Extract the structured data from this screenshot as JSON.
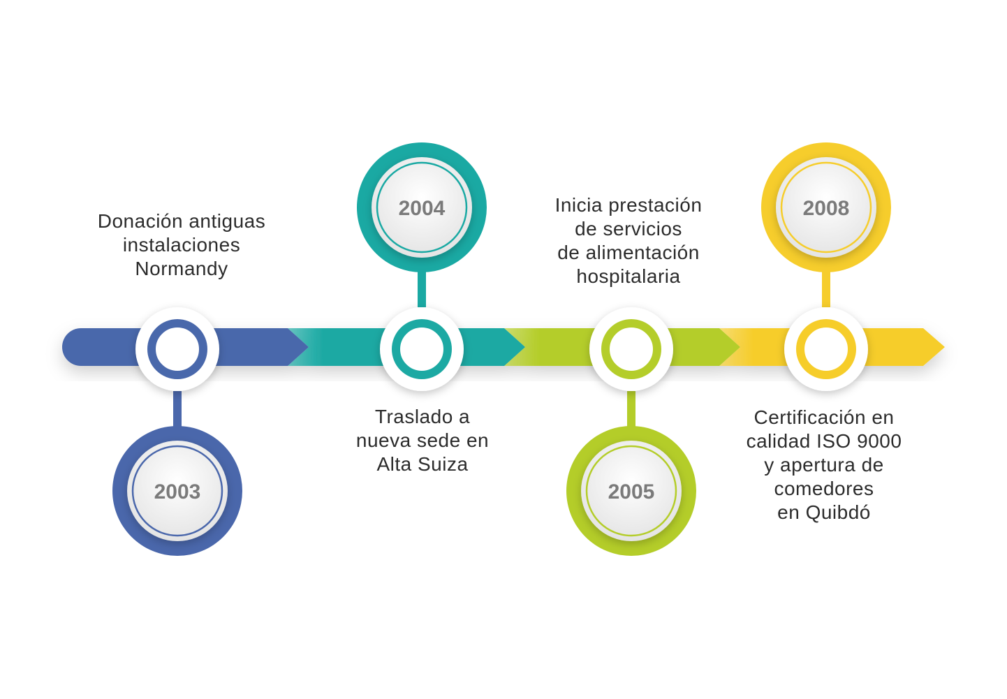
{
  "milestones": [
    {
      "year": "2003",
      "text": "Donación antiguas\ninstalaciones\nNormandy",
      "color": "#4a67ab"
    },
    {
      "year": "2004",
      "text": "Traslado a\nnueva sede en\nAlta Suiza",
      "color": "#1aa9a3"
    },
    {
      "year": "2005",
      "text": "Inicia prestación\nde servicios\nde alimentación\nhospitalaria",
      "color": "#b4cd29"
    },
    {
      "year": "2008",
      "text": "Certificación en\ncalidad ISO 9000\ny apertura de\ncomedores\nen Quibdó",
      "color": "#f6cd2c"
    }
  ]
}
